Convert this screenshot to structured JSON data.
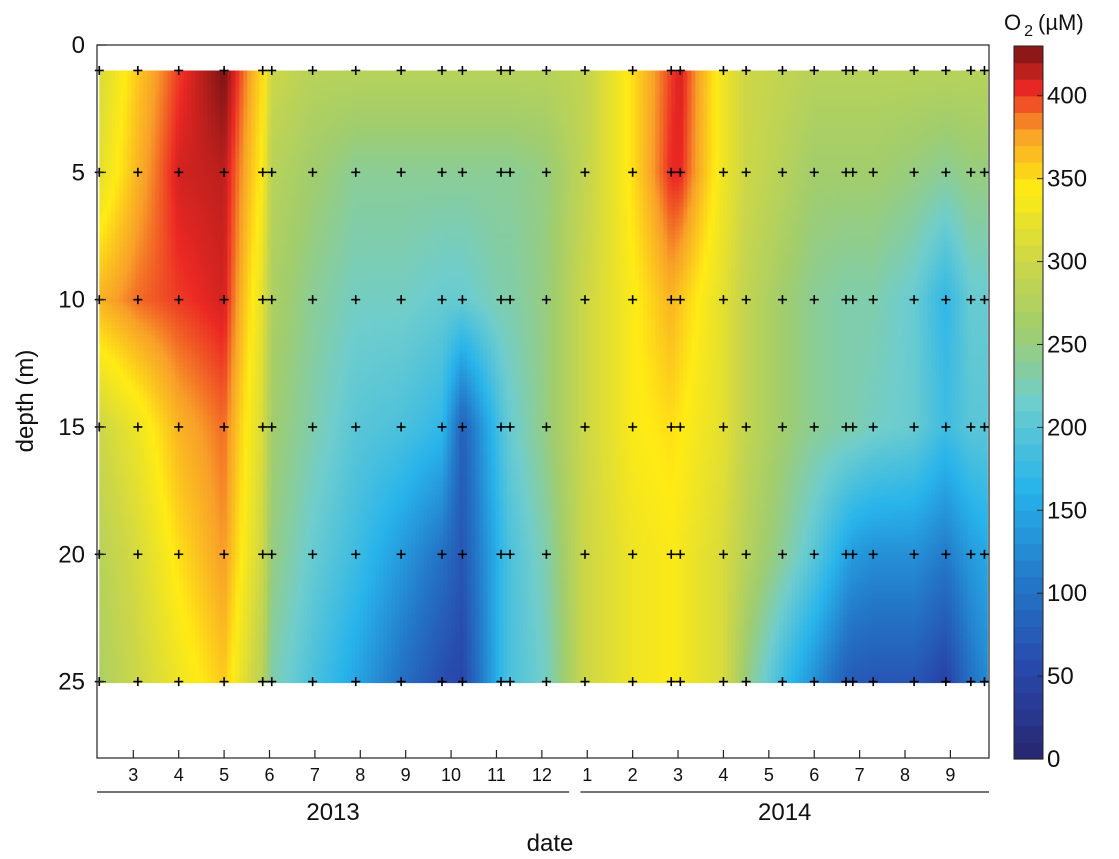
{
  "chart_data": {
    "type": "heatmap",
    "title": "",
    "xlabel": "date",
    "ylabel": "depth (m)",
    "colorbar_label": "O 2 (µM)",
    "colorbar_label_main": "O",
    "colorbar_label_sub": "2",
    "colorbar_label_unit": "(µM)",
    "colorscale": "jet",
    "zlim": [
      0,
      430
    ],
    "colorbar_ticks": [
      "0",
      "50",
      "100",
      "150",
      "200",
      "250",
      "300",
      "350",
      "400"
    ],
    "colorbar_tick_values": [
      0,
      50,
      100,
      150,
      200,
      250,
      300,
      350,
      400
    ],
    "ylim": [
      0,
      28
    ],
    "y_reversed": true,
    "y_ticks": [
      "0",
      "5",
      "10",
      "15",
      "20",
      "25"
    ],
    "y_tick_values": [
      0,
      5,
      10,
      15,
      20,
      25
    ],
    "xlim": [
      2.2,
      21.85
    ],
    "x_unit": "month",
    "x_tick_values": [
      3,
      4,
      5,
      6,
      7,
      8,
      9,
      10,
      11,
      12,
      13,
      14,
      15,
      16,
      17,
      18,
      19,
      20,
      21
    ],
    "x_ticks": [
      "3",
      "4",
      "5",
      "6",
      "7",
      "8",
      "9",
      "10",
      "11",
      "12",
      "1",
      "2",
      "3",
      "4",
      "5",
      "6",
      "7",
      "8",
      "9"
    ],
    "year_groups": [
      {
        "label": "2013",
        "start": 2.2,
        "end": 12.6
      },
      {
        "label": "2014",
        "start": 12.85,
        "end": 21.85
      }
    ],
    "depths": [
      1,
      5,
      10,
      15,
      20,
      25
    ],
    "sample_dates": [
      2.25,
      3.1,
      4.0,
      5.0,
      5.85,
      6.05,
      6.95,
      7.9,
      8.9,
      9.8,
      10.25,
      11.1,
      11.3,
      12.1,
      12.95,
      14.0,
      14.85,
      15.05,
      16.0,
      16.5,
      17.3,
      18.0,
      18.7,
      18.85,
      19.3,
      20.2,
      20.9,
      21.45,
      21.75
    ],
    "o2_values": [
      [
        310,
        360,
        400,
        430,
        350,
        300,
        280,
        280,
        280,
        280,
        280,
        280,
        280,
        280,
        290,
        350,
        400,
        410,
        330,
        300,
        290,
        280,
        280,
        280,
        280,
        280,
        280,
        280,
        280
      ],
      [
        320,
        370,
        410,
        415,
        340,
        280,
        260,
        240,
        240,
        240,
        240,
        240,
        240,
        250,
        290,
        350,
        405,
        405,
        330,
        300,
        280,
        260,
        260,
        260,
        260,
        250,
        240,
        250,
        250
      ],
      [
        370,
        390,
        400,
        410,
        320,
        270,
        240,
        220,
        220,
        210,
        210,
        230,
        230,
        250,
        300,
        340,
        370,
        360,
        320,
        290,
        260,
        240,
        230,
        230,
        230,
        210,
        170,
        210,
        210
      ],
      [
        300,
        330,
        370,
        390,
        310,
        260,
        230,
        200,
        190,
        170,
        80,
        190,
        210,
        250,
        300,
        340,
        350,
        345,
        320,
        290,
        260,
        240,
        230,
        230,
        220,
        210,
        180,
        200,
        200
      ],
      [
        280,
        310,
        350,
        380,
        300,
        250,
        210,
        180,
        140,
        100,
        70,
        170,
        190,
        230,
        300,
        330,
        340,
        335,
        310,
        280,
        240,
        200,
        150,
        140,
        130,
        130,
        110,
        140,
        150
      ],
      [
        270,
        300,
        330,
        360,
        280,
        230,
        190,
        150,
        100,
        60,
        50,
        170,
        190,
        220,
        300,
        330,
        340,
        335,
        310,
        250,
        180,
        130,
        80,
        75,
        70,
        70,
        45,
        100,
        120
      ]
    ]
  }
}
